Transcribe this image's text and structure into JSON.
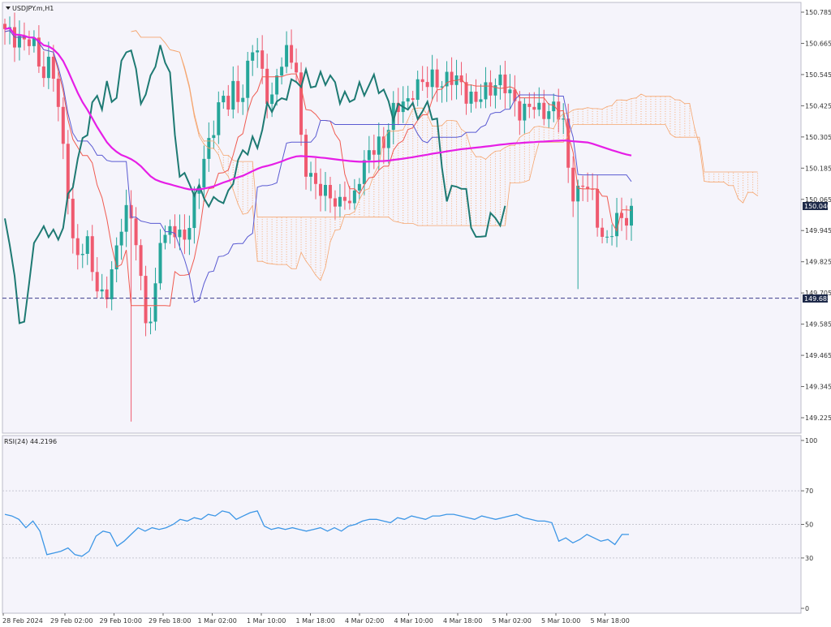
{
  "symbol_title": "USDJPY.m,H1",
  "indicator_label": "RSI(24) 44.2196",
  "current_price_label": "150.040",
  "line_price_label": "149.685",
  "colors": {
    "bull": "#26a69a",
    "bear": "#ef5a6f",
    "ma": "#e61ee6",
    "tenkan": "#f05a50",
    "kijun": "#5a5ad2",
    "chikou": "#1e7a73",
    "cloud": "#f5a56e",
    "rsi": "#3c96e6",
    "hline": "#3c3c8c"
  },
  "chart_data": [
    {
      "type": "candlestick",
      "title": "USDJPY.m,H1",
      "ylim": [
        149.165,
        150.825
      ],
      "y_ticks": [
        "150.785",
        "150.665",
        "150.545",
        "150.425",
        "150.305",
        "150.185",
        "150.065",
        "149.945",
        "149.825",
        "149.705",
        "149.585",
        "149.465",
        "149.345",
        "149.225"
      ],
      "x_ticks": [
        "28 Feb 2024",
        "29 Feb 02:00",
        "29 Feb 10:00",
        "29 Feb 18:00",
        "1 Mar 02:00",
        "1 Mar 10:00",
        "1 Mar 18:00",
        "4 Mar 02:00",
        "4 Mar 10:00",
        "4 Mar 18:00",
        "5 Mar 02:00",
        "5 Mar 10:00",
        "5 Mar 18:00"
      ],
      "price_path": [
        150.7,
        150.69,
        150.7,
        150.68,
        150.67,
        150.62,
        150.55,
        150.6,
        150.55,
        150.3,
        150.15,
        149.9,
        149.85,
        149.9,
        149.8,
        149.72,
        149.7,
        149.75,
        149.85,
        150.0,
        150.05,
        149.95,
        149.7,
        149.55,
        149.65,
        149.95,
        149.9,
        149.95,
        149.92,
        149.94,
        150.0,
        150.08,
        150.2,
        150.3,
        150.4,
        150.45,
        150.42,
        150.5,
        150.45,
        150.55,
        150.65,
        150.6,
        150.5,
        150.45,
        150.55,
        150.6,
        150.63,
        150.58,
        150.2,
        150.15,
        150.1,
        150.13,
        150.1,
        150.05,
        150.02,
        150.1,
        150.05,
        150.15,
        150.18,
        150.25,
        150.3,
        150.28,
        150.35,
        150.4,
        150.45,
        150.45,
        150.5,
        150.48,
        150.52,
        150.55,
        150.52,
        150.5,
        150.52,
        150.54,
        150.5,
        150.45,
        150.42,
        150.48,
        150.5,
        150.52,
        150.5,
        150.48,
        150.45,
        150.42,
        150.4,
        150.42,
        150.4,
        150.42,
        150.42,
        150.4,
        150.35,
        150.15,
        150.08,
        150.12,
        150.1,
        150.05,
        149.95,
        149.9,
        149.95,
        149.98,
        150.0,
        150.04
      ],
      "horizontal_line": 149.685,
      "current_price": 150.04
    },
    {
      "type": "line",
      "title": "RSI(24) 44.2196",
      "ylim": [
        0,
        100
      ],
      "y_ticks": [
        "100",
        "70",
        "50",
        "30",
        "0"
      ],
      "levels": [
        70,
        50,
        30
      ],
      "values": [
        56,
        55,
        53,
        48,
        52,
        46,
        32,
        33,
        34,
        36,
        32,
        31,
        34,
        43,
        46,
        45,
        37,
        40,
        44,
        48,
        46,
        48,
        47,
        48,
        50,
        53,
        52,
        54,
        53,
        56,
        55,
        58,
        57,
        53,
        55,
        57,
        58,
        49,
        47,
        48,
        47,
        48,
        47,
        46,
        47,
        48,
        46,
        48,
        46,
        49,
        50,
        52,
        53,
        53,
        52,
        51,
        54,
        53,
        55,
        54,
        53,
        55,
        55,
        56,
        56,
        55,
        54,
        53,
        55,
        54,
        53,
        54,
        55,
        56,
        54,
        53,
        52,
        52,
        51,
        40,
        42,
        39,
        41,
        44,
        42,
        40,
        41,
        38,
        44,
        44
      ]
    }
  ]
}
